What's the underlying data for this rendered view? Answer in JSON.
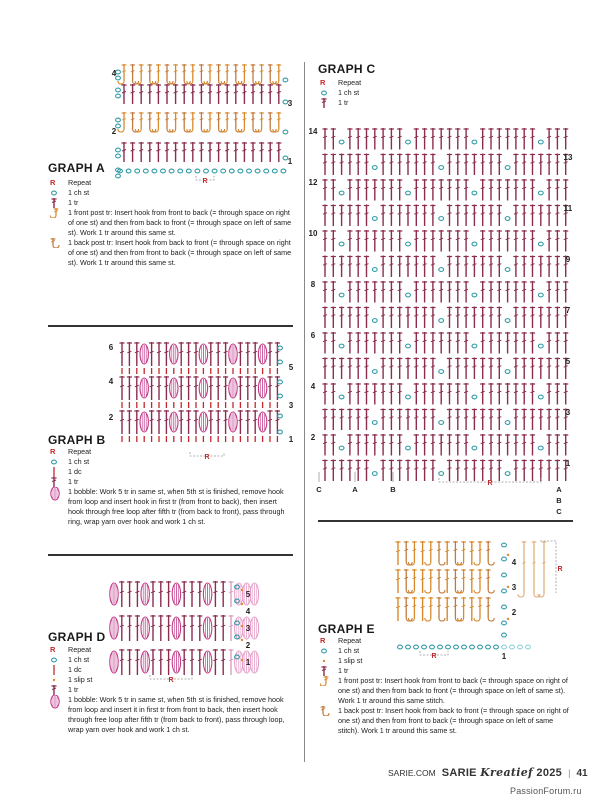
{
  "page": {
    "footer_site": "SARIE.COM",
    "footer_mag": "SARIE",
    "footer_mag_script": "Kreatief",
    "footer_year": "2025",
    "footer_sep": "|",
    "page_number": "41",
    "watermark": "PassionForum.ru"
  },
  "colors": {
    "tr": "#8b2d4f",
    "ch": "#2e9aa6",
    "post_front": "#d98a2b",
    "post_back": "#c27a3a",
    "bobble": "#c23a8a",
    "repeat": "#c0282d"
  },
  "graph_a": {
    "title": "GRAPH A",
    "row_labels_left": [
      "4",
      "2"
    ],
    "row_labels_right": [
      "3",
      "1"
    ],
    "repeat_label": "R",
    "legend": [
      {
        "sym": "R",
        "text": "Repeat"
      },
      {
        "sym": "ch-icon",
        "text": "1 ch st"
      },
      {
        "sym": "tr-icon",
        "text": "1 tr"
      },
      {
        "sym": "fptr-icon",
        "text": "1 front post tr: Insert hook from front to back (= through space on right of one st) and then from back to front (= through space on left of same st). Work 1 tr around this same st."
      },
      {
        "sym": "bptr-icon",
        "text": "1 back post tr: Insert hook from back to front (= through space on right of one st) and then from front to back (= through space on left of same st). Work 1 tr around this same st."
      }
    ]
  },
  "graph_b": {
    "title": "GRAPH B",
    "row_labels_left": [
      "6",
      "4",
      "2"
    ],
    "row_labels_right": [
      "5",
      "3",
      "1"
    ],
    "repeat_label": "R",
    "legend": [
      {
        "sym": "R",
        "text": "Repeat"
      },
      {
        "sym": "ch-icon",
        "text": "1 ch st"
      },
      {
        "sym": "dc-icon",
        "text": "1 dc"
      },
      {
        "sym": "tr-icon",
        "text": "1 tr"
      },
      {
        "sym": "bobble-icon",
        "text": "1 bobble: Work 5 tr in same st, when 5th st is finished, remove hook from loop and insert hook in first tr (from front to back), then insert hook through free loop after fifth tr (from back to front), pass through ring, wrap yarn over hook and work 1 ch st."
      }
    ]
  },
  "graph_c": {
    "title": "GRAPH C",
    "row_labels_left": [
      "14",
      "12",
      "10",
      "8",
      "6",
      "4",
      "2"
    ],
    "row_labels_right": [
      "13",
      "11",
      "9",
      "7",
      "5",
      "3",
      "1"
    ],
    "col_labels": [
      "C",
      "A",
      "B"
    ],
    "col_labels_right": [
      "A",
      "B",
      "C"
    ],
    "repeat_label": "R",
    "legend": [
      {
        "sym": "R",
        "text": "Repeat"
      },
      {
        "sym": "ch-icon",
        "text": "1 ch st"
      },
      {
        "sym": "tr-icon",
        "text": "1 tr"
      }
    ]
  },
  "graph_d": {
    "title": "GRAPH D",
    "row_labels_right": [
      "5",
      "4",
      "3",
      "2",
      "1"
    ],
    "repeat_label": "R",
    "legend": [
      {
        "sym": "R",
        "text": "Repeat"
      },
      {
        "sym": "ch-icon",
        "text": "1 ch st"
      },
      {
        "sym": "dc-icon",
        "text": "1 dc"
      },
      {
        "sym": "sl-icon",
        "text": "1 slip st"
      },
      {
        "sym": "tr-icon",
        "text": "1 tr"
      },
      {
        "sym": "bobble-icon",
        "text": "1 bobble: Work 5 tr in same st, when 5th st is finished, remove hook from loop and insert it in first tr from front to back, then insert hook through free loop after fifth tr (from back to front), pass through loop, wrap yarn over hook and work 1 ch st."
      }
    ]
  },
  "graph_e": {
    "title": "GRAPH E",
    "row_labels_right": [
      "4",
      "3",
      "2"
    ],
    "row_label_left": "1",
    "repeat_label": "R",
    "legend": [
      {
        "sym": "R",
        "text": "Repeat"
      },
      {
        "sym": "ch-icon",
        "text": "1 ch st"
      },
      {
        "sym": "sl-icon",
        "text": "1 slip st"
      },
      {
        "sym": "tr-icon",
        "text": "1 tr"
      },
      {
        "sym": "fptr-icon",
        "text": "1 front post tr: Insert hook from front to back (= through space on right of one st) and then from back to front (= through space on left of same st). Work 1 tr around this same stitch."
      },
      {
        "sym": "bptr-icon",
        "text": "1 back post tr: Insert hook from back to front (= through space on right of one st) and then from front to back (= through space on left of same stitch). Work 1 tr around this same st."
      }
    ]
  }
}
